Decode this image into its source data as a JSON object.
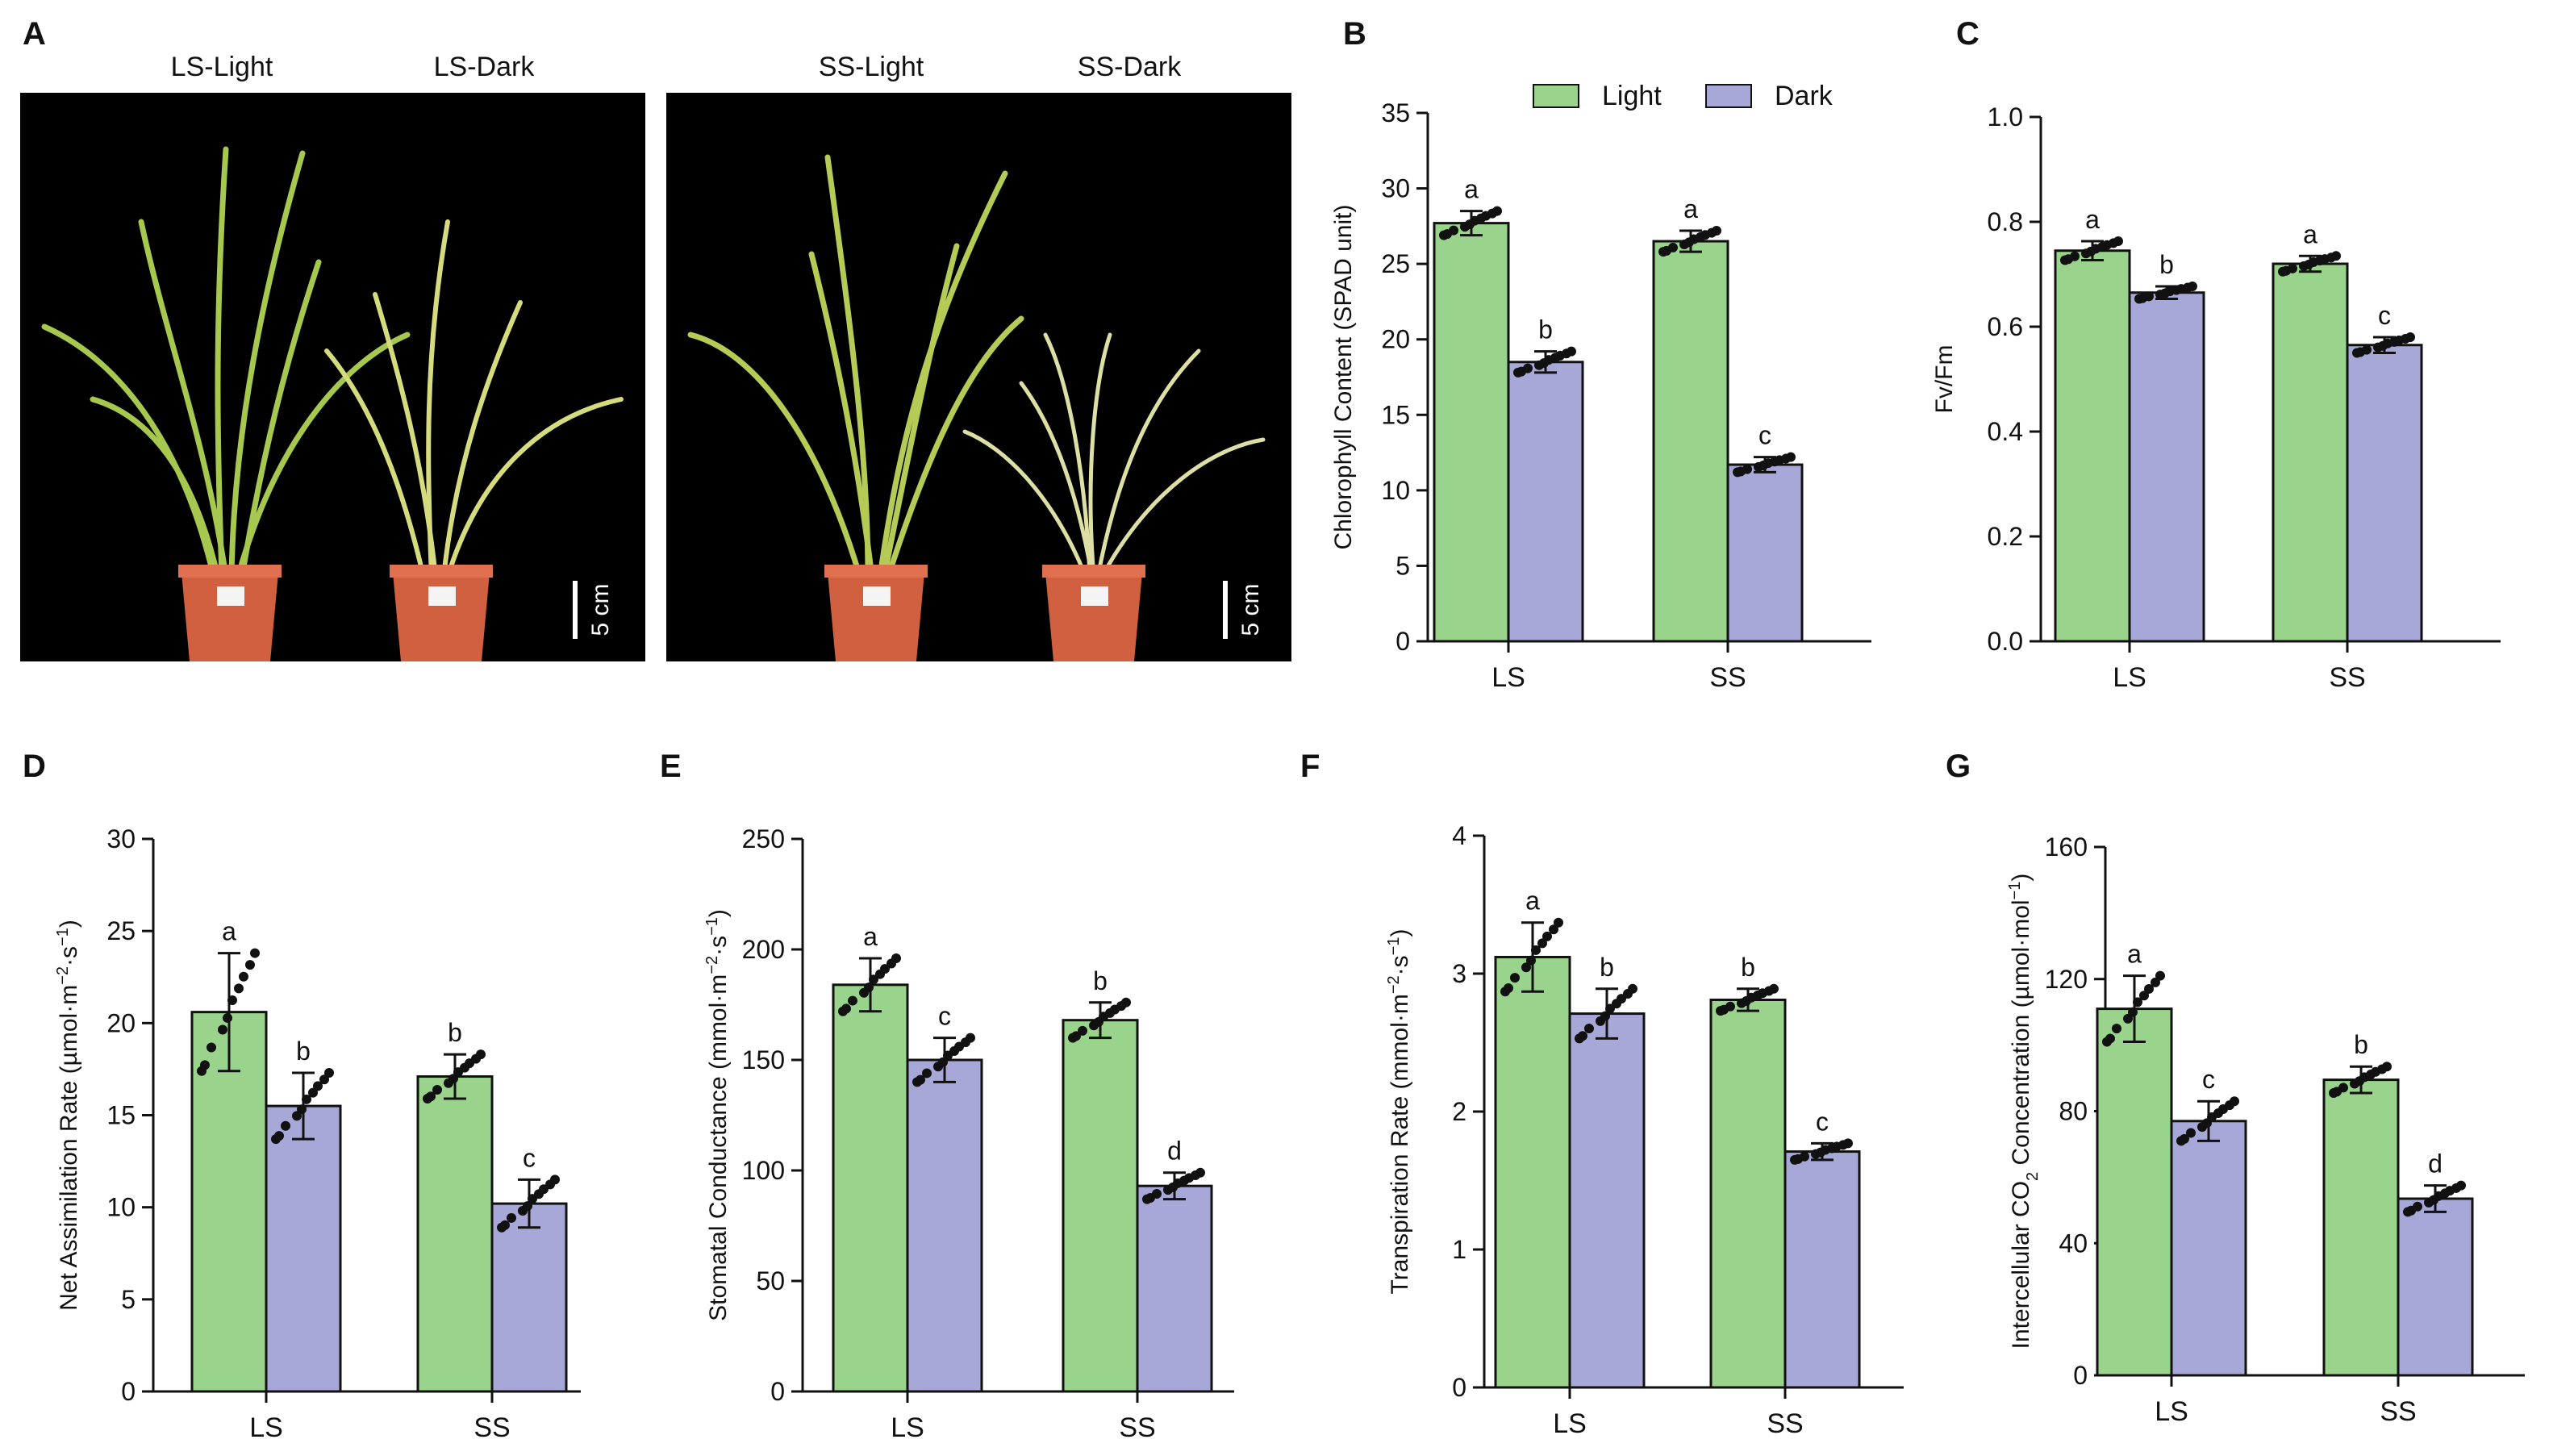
{
  "panel_labels": {
    "a": "A",
    "b": "B",
    "c": "C",
    "d": "D",
    "e": "E",
    "f": "F",
    "g": "G"
  },
  "photos": {
    "left": {
      "title1": "LS-Light",
      "title2": "LS-Dark",
      "scale": "5 cm"
    },
    "right": {
      "title1": "SS-Light",
      "title2": "SS-Dark",
      "scale": "5 cm"
    }
  },
  "legend": {
    "light": "Light",
    "dark": "Dark"
  },
  "colors": {
    "light": "#9ad48c",
    "dark": "#a7a7d8",
    "stroke": "#111111",
    "point": "#111111"
  },
  "chart_data": [
    {
      "id": "B",
      "type": "bar",
      "ylabel": "Chlorophyll Content (SPAD unit)",
      "categories": [
        "LS",
        "SS"
      ],
      "ylim": [
        0,
        35
      ],
      "yticks": [
        0,
        5,
        10,
        15,
        20,
        25,
        30,
        35
      ],
      "decimals": 0,
      "series": [
        {
          "name": "Light",
          "values": [
            27.7,
            26.5
          ],
          "errors": [
            0.8,
            0.7
          ],
          "letters": [
            "a",
            "a"
          ]
        },
        {
          "name": "Dark",
          "values": [
            18.5,
            11.7
          ],
          "errors": [
            0.7,
            0.5
          ],
          "letters": [
            "b",
            "c"
          ]
        }
      ]
    },
    {
      "id": "C",
      "type": "bar",
      "ylabel": "Fv/Fm",
      "categories": [
        "LS",
        "SS"
      ],
      "ylim": [
        0,
        1.0
      ],
      "yticks": [
        0,
        0.2,
        0.4,
        0.6,
        0.8,
        1.0
      ],
      "decimals": 1,
      "series": [
        {
          "name": "Light",
          "values": [
            0.745,
            0.72
          ],
          "errors": [
            0.018,
            0.015
          ],
          "letters": [
            "a",
            "a"
          ]
        },
        {
          "name": "Dark",
          "values": [
            0.665,
            0.565
          ],
          "errors": [
            0.012,
            0.015
          ],
          "letters": [
            "b",
            "c"
          ]
        }
      ]
    },
    {
      "id": "D",
      "type": "bar",
      "ylabel": "Net Assimilation Rate (µmol·m−2·s−1)",
      "ylabel_parts": [
        [
          "Net Assimilation Rate (µmol·m",
          "n"
        ],
        [
          "−2",
          "sup"
        ],
        [
          "·s",
          "n"
        ],
        [
          "−1",
          "sup"
        ],
        [
          ")",
          "n"
        ]
      ],
      "categories": [
        "LS",
        "SS"
      ],
      "ylim": [
        0,
        30
      ],
      "yticks": [
        0,
        5,
        10,
        15,
        20,
        25,
        30
      ],
      "decimals": 0,
      "series": [
        {
          "name": "Light",
          "values": [
            20.6,
            17.1
          ],
          "errors": [
            3.2,
            1.2
          ],
          "letters": [
            "a",
            "b"
          ]
        },
        {
          "name": "Dark",
          "values": [
            15.5,
            10.2
          ],
          "errors": [
            1.8,
            1.3
          ],
          "letters": [
            "b",
            "c"
          ]
        }
      ]
    },
    {
      "id": "E",
      "type": "bar",
      "ylabel": "Stomatal Conductance (mmol·m−2·s−1)",
      "ylabel_parts": [
        [
          "Stomatal Conductance (mmol·m",
          "n"
        ],
        [
          "−2",
          "sup"
        ],
        [
          "·s",
          "n"
        ],
        [
          "−1",
          "sup"
        ],
        [
          ")",
          "n"
        ]
      ],
      "categories": [
        "LS",
        "SS"
      ],
      "ylim": [
        0,
        250
      ],
      "yticks": [
        0,
        50,
        100,
        150,
        200,
        250
      ],
      "decimals": 0,
      "series": [
        {
          "name": "Light",
          "values": [
            184,
            168
          ],
          "errors": [
            12,
            8
          ],
          "letters": [
            "a",
            "b"
          ]
        },
        {
          "name": "Dark",
          "values": [
            150,
            93
          ],
          "errors": [
            10,
            6
          ],
          "letters": [
            "c",
            "d"
          ]
        }
      ]
    },
    {
      "id": "F",
      "type": "bar",
      "ylabel": "Transpiration Rate (mmol·m−2·s−1)",
      "ylabel_parts": [
        [
          "Transpiration Rate (mmol·m",
          "n"
        ],
        [
          "−2",
          "sup"
        ],
        [
          "·s",
          "n"
        ],
        [
          "−1",
          "sup"
        ],
        [
          ")",
          "n"
        ]
      ],
      "categories": [
        "LS",
        "SS"
      ],
      "ylim": [
        0,
        4
      ],
      "yticks": [
        0,
        1,
        2,
        3,
        4
      ],
      "decimals": 0,
      "series": [
        {
          "name": "Light",
          "values": [
            3.12,
            2.81
          ],
          "errors": [
            0.25,
            0.08
          ],
          "letters": [
            "a",
            "b"
          ]
        },
        {
          "name": "Dark",
          "values": [
            2.71,
            1.71
          ],
          "errors": [
            0.18,
            0.06
          ],
          "letters": [
            "b",
            "c"
          ]
        }
      ]
    },
    {
      "id": "G",
      "type": "bar",
      "ylabel": "Intercellular CO2 Concentration (µmol·mol−1)",
      "ylabel_parts": [
        [
          "Intercellular CO",
          "n"
        ],
        [
          "2",
          "sub"
        ],
        [
          " Concentration (µmol·mol",
          "n"
        ],
        [
          "−1",
          "sup"
        ],
        [
          ")",
          "n"
        ]
      ],
      "categories": [
        "LS",
        "SS"
      ],
      "ylim": [
        0,
        160
      ],
      "yticks": [
        0,
        40,
        80,
        120,
        160
      ],
      "decimals": 0,
      "series": [
        {
          "name": "Light",
          "values": [
            111,
            89.5
          ],
          "errors": [
            10,
            4
          ],
          "letters": [
            "a",
            "b"
          ]
        },
        {
          "name": "Dark",
          "values": [
            77,
            53.5
          ],
          "errors": [
            6,
            4
          ],
          "letters": [
            "c",
            "d"
          ]
        }
      ]
    }
  ]
}
